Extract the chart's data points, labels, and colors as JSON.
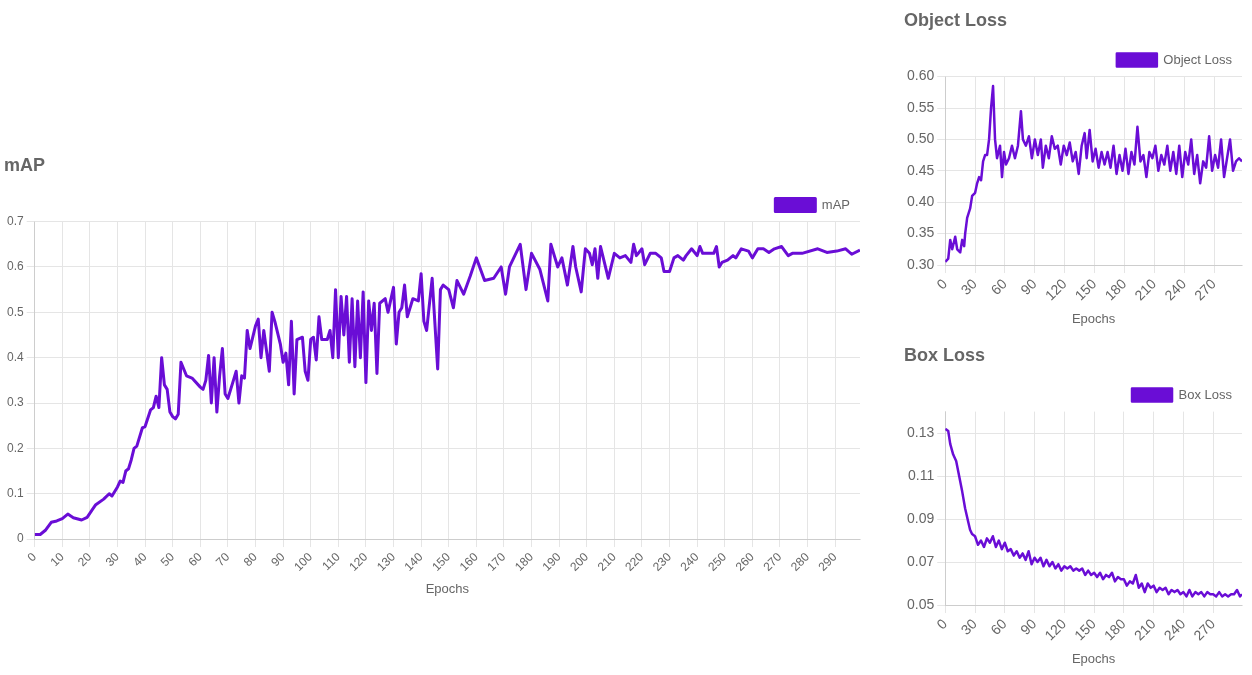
{
  "chart_data": [
    {
      "type": "line",
      "title": "mAP",
      "xlabel": "Epochs",
      "legend": "top right",
      "grid": true,
      "marker": "none",
      "line_style": "solid",
      "xlim": [
        0,
        299
      ],
      "xticks": [
        0,
        10,
        20,
        30,
        40,
        50,
        60,
        70,
        80,
        90,
        100,
        110,
        120,
        130,
        140,
        150,
        160,
        170,
        180,
        190,
        200,
        210,
        220,
        230,
        240,
        250,
        260,
        270,
        280,
        290
      ],
      "ylim": [
        0,
        0.7
      ],
      "yticks": [
        0,
        0.1,
        0.2,
        0.3,
        0.4,
        0.5,
        0.6,
        0.7
      ],
      "series": [
        {
          "name": "mAP",
          "color": "#6a0dd6",
          "x": [
            0,
            2,
            4,
            6,
            8,
            10,
            12,
            14,
            17,
            19,
            22,
            25,
            27,
            28,
            30,
            31,
            32,
            33,
            34,
            35,
            36,
            37,
            39,
            40,
            42,
            43,
            44,
            45,
            46,
            47,
            48,
            49,
            50,
            51,
            52,
            53,
            55,
            57,
            60,
            61,
            62,
            63,
            64,
            65,
            66,
            67,
            68,
            69,
            70,
            72,
            73,
            74,
            75,
            76,
            77,
            78,
            80,
            81,
            82,
            83,
            85,
            86,
            87,
            89,
            90,
            91,
            92,
            93,
            94,
            95,
            97,
            98,
            99,
            100,
            101,
            102,
            103,
            104,
            106,
            107,
            108,
            109,
            110,
            111,
            112,
            113,
            114,
            115,
            116,
            117,
            118,
            119,
            120,
            121,
            122,
            123,
            124,
            125,
            127,
            128,
            130,
            131,
            132,
            133,
            134,
            135,
            137,
            139,
            140,
            141,
            142,
            144,
            146,
            147,
            148,
            150,
            151.7,
            153,
            155.4,
            157.8,
            160,
            163,
            166.3,
            169,
            170.6,
            172,
            175.9,
            178,
            180,
            183,
            185.9,
            187,
            189.5,
            191,
            193,
            195,
            196,
            198,
            199.5,
            201,
            202,
            203,
            204,
            205,
            207.8,
            210,
            212,
            214,
            216,
            217,
            218,
            220,
            221,
            223,
            225,
            227,
            228,
            230,
            231.6,
            233,
            235,
            236,
            238,
            240,
            241,
            242,
            243,
            246,
            247,
            248,
            249,
            251,
            253,
            254,
            256,
            258.6,
            260,
            262,
            264,
            266,
            268,
            270.6,
            273,
            274.5,
            278,
            283.7,
            287,
            290.6,
            293.8,
            296,
            299
          ],
          "values": [
            0.01,
            0.01,
            0.02,
            0.037,
            0.04,
            0.045,
            0.055,
            0.047,
            0.042,
            0.048,
            0.075,
            0.088,
            0.1,
            0.095,
            0.115,
            0.128,
            0.125,
            0.15,
            0.155,
            0.175,
            0.2,
            0.205,
            0.245,
            0.248,
            0.285,
            0.29,
            0.315,
            0.29,
            0.4,
            0.34,
            0.33,
            0.28,
            0.27,
            0.265,
            0.275,
            0.39,
            0.36,
            0.355,
            0.335,
            0.33,
            0.35,
            0.405,
            0.3,
            0.4,
            0.28,
            0.36,
            0.42,
            0.32,
            0.31,
            0.35,
            0.37,
            0.3,
            0.36,
            0.355,
            0.46,
            0.42,
            0.47,
            0.485,
            0.4,
            0.46,
            0.37,
            0.5,
            0.48,
            0.43,
            0.39,
            0.41,
            0.34,
            0.48,
            0.32,
            0.44,
            0.445,
            0.37,
            0.35,
            0.44,
            0.445,
            0.395,
            0.49,
            0.44,
            0.44,
            0.46,
            0.4,
            0.55,
            0.4,
            0.535,
            0.45,
            0.535,
            0.39,
            0.53,
            0.38,
            0.525,
            0.4,
            0.545,
            0.345,
            0.525,
            0.46,
            0.52,
            0.365,
            0.52,
            0.53,
            0.5,
            0.555,
            0.43,
            0.5,
            0.51,
            0.56,
            0.49,
            0.53,
            0.525,
            0.585,
            0.48,
            0.46,
            0.575,
            0.375,
            0.55,
            0.56,
            0.55,
            0.51,
            0.57,
            0.54,
            0.58,
            0.62,
            0.57,
            0.575,
            0.6,
            0.54,
            0.6,
            0.65,
            0.55,
            0.63,
            0.595,
            0.525,
            0.65,
            0.6,
            0.62,
            0.56,
            0.645,
            0.6,
            0.545,
            0.64,
            0.63,
            0.605,
            0.64,
            0.575,
            0.645,
            0.575,
            0.63,
            0.62,
            0.625,
            0.61,
            0.65,
            0.625,
            0.64,
            0.605,
            0.63,
            0.63,
            0.62,
            0.59,
            0.59,
            0.62,
            0.625,
            0.615,
            0.625,
            0.64,
            0.625,
            0.645,
            0.63,
            0.63,
            0.63,
            0.645,
            0.6,
            0.61,
            0.615,
            0.625,
            0.62,
            0.64,
            0.635,
            0.62,
            0.64,
            0.64,
            0.632,
            0.64,
            0.645,
            0.625,
            0.63,
            0.63,
            0.64,
            0.632,
            0.635,
            0.64,
            0.628,
            0.637
          ]
        }
      ]
    },
    {
      "type": "line",
      "title": "Object Loss",
      "xlabel": "Epochs",
      "legend": "top right",
      "grid": true,
      "marker": "none",
      "line_style": "solid",
      "xlim": [
        0,
        298
      ],
      "xticks": [
        0,
        30,
        60,
        90,
        120,
        150,
        180,
        210,
        240,
        270
      ],
      "ylim": [
        0.3,
        0.6
      ],
      "yticks": [
        {
          "value": 0.3,
          "label": "0.30"
        },
        0.35,
        {
          "value": 0.4,
          "label": "0.40"
        },
        0.45,
        {
          "value": 0.5,
          "label": "0.50"
        },
        0.55,
        {
          "value": 0.6,
          "label": "0.60"
        }
      ],
      "series": [
        {
          "name": "Object Loss",
          "color": "#6a0dd6",
          "x": [
            0,
            3,
            5,
            7,
            10,
            12,
            15,
            17,
            19,
            20,
            22,
            25,
            27,
            30,
            32,
            34,
            36,
            38,
            40,
            42,
            44,
            46,
            48,
            50,
            52,
            55,
            57,
            59,
            61,
            64,
            67,
            70,
            73,
            76,
            78,
            81,
            84,
            87,
            90,
            93,
            96,
            98,
            101,
            104,
            107,
            110,
            113,
            116,
            119,
            122,
            125,
            128,
            131,
            134,
            137,
            140,
            142,
            145,
            148,
            151,
            154,
            157,
            160,
            163,
            166,
            169,
            172,
            175,
            178,
            181,
            184,
            187,
            190,
            193,
            196,
            199,
            202,
            205,
            208,
            211,
            214,
            217,
            220,
            223,
            226,
            229,
            232,
            235,
            238,
            241,
            244,
            247,
            250,
            253,
            256,
            259,
            262,
            265,
            268,
            271,
            274,
            277,
            280,
            283,
            286,
            289,
            292,
            295,
            298
          ],
          "values": [
            0.305,
            0.31,
            0.34,
            0.325,
            0.345,
            0.325,
            0.32,
            0.34,
            0.33,
            0.35,
            0.375,
            0.39,
            0.41,
            0.415,
            0.43,
            0.44,
            0.435,
            0.465,
            0.475,
            0.475,
            0.5,
            0.55,
            0.585,
            0.5,
            0.47,
            0.49,
            0.44,
            0.48,
            0.46,
            0.47,
            0.49,
            0.47,
            0.49,
            0.545,
            0.5,
            0.49,
            0.505,
            0.47,
            0.5,
            0.475,
            0.5,
            0.455,
            0.49,
            0.47,
            0.505,
            0.485,
            0.49,
            0.46,
            0.49,
            0.475,
            0.495,
            0.465,
            0.48,
            0.445,
            0.49,
            0.51,
            0.47,
            0.515,
            0.465,
            0.485,
            0.455,
            0.48,
            0.46,
            0.48,
            0.455,
            0.49,
            0.445,
            0.475,
            0.45,
            0.485,
            0.445,
            0.48,
            0.46,
            0.52,
            0.465,
            0.475,
            0.44,
            0.48,
            0.47,
            0.49,
            0.45,
            0.475,
            0.46,
            0.49,
            0.45,
            0.48,
            0.445,
            0.49,
            0.44,
            0.48,
            0.46,
            0.5,
            0.445,
            0.475,
            0.43,
            0.465,
            0.455,
            0.505,
            0.45,
            0.475,
            0.455,
            0.5,
            0.44,
            0.47,
            0.5,
            0.45,
            0.465,
            0.47,
            0.465
          ]
        }
      ]
    },
    {
      "type": "line",
      "title": "Box Loss",
      "xlabel": "Epochs",
      "legend": "top right",
      "grid": true,
      "marker": "none",
      "line_style": "solid",
      "xlim": [
        0,
        299
      ],
      "xticks": [
        0,
        30,
        60,
        90,
        120,
        150,
        180,
        210,
        240,
        270
      ],
      "ylim": [
        0.05,
        0.14
      ],
      "yticks": [
        0.05,
        0.07,
        0.09,
        0.11,
        0.13
      ],
      "series": [
        {
          "name": "Box Loss",
          "color": "#6a0dd6",
          "x": [
            0,
            3,
            5,
            8,
            11,
            14,
            17,
            20,
            23,
            25,
            27,
            30,
            33,
            36,
            39,
            42,
            45,
            48,
            51,
            54,
            57,
            60,
            63,
            66,
            69,
            72,
            75,
            78,
            81,
            84,
            87,
            90,
            93,
            96,
            99,
            102,
            105,
            108,
            111,
            114,
            117,
            120,
            123,
            126,
            129,
            132,
            135,
            138,
            141,
            144,
            147,
            150,
            153,
            156,
            159,
            162,
            165,
            168,
            171,
            174,
            177,
            180,
            183,
            186,
            189,
            192,
            195,
            198,
            201,
            204,
            207,
            210,
            213,
            216,
            219,
            222,
            225,
            228,
            231,
            234,
            237,
            240,
            243,
            246,
            249,
            252,
            255,
            258,
            261,
            264,
            267,
            270,
            273,
            276,
            279,
            282,
            285,
            288,
            291,
            294,
            297,
            299
          ],
          "values": [
            0.132,
            0.131,
            0.125,
            0.12,
            0.117,
            0.11,
            0.103,
            0.095,
            0.089,
            0.085,
            0.083,
            0.082,
            0.078,
            0.08,
            0.077,
            0.081,
            0.079,
            0.082,
            0.077,
            0.08,
            0.076,
            0.079,
            0.075,
            0.076,
            0.073,
            0.075,
            0.072,
            0.074,
            0.071,
            0.075,
            0.069,
            0.072,
            0.07,
            0.072,
            0.068,
            0.071,
            0.068,
            0.07,
            0.067,
            0.069,
            0.066,
            0.068,
            0.067,
            0.068,
            0.066,
            0.067,
            0.066,
            0.067,
            0.064,
            0.066,
            0.064,
            0.065,
            0.063,
            0.065,
            0.062,
            0.064,
            0.063,
            0.065,
            0.061,
            0.063,
            0.062,
            0.062,
            0.059,
            0.061,
            0.06,
            0.064,
            0.058,
            0.06,
            0.056,
            0.06,
            0.058,
            0.059,
            0.056,
            0.058,
            0.057,
            0.058,
            0.055,
            0.057,
            0.056,
            0.057,
            0.055,
            0.056,
            0.054,
            0.057,
            0.054,
            0.056,
            0.055,
            0.056,
            0.054,
            0.056,
            0.055,
            0.055,
            0.054,
            0.056,
            0.054,
            0.055,
            0.054,
            0.055,
            0.055,
            0.057,
            0.054,
            0.055
          ]
        }
      ]
    }
  ]
}
